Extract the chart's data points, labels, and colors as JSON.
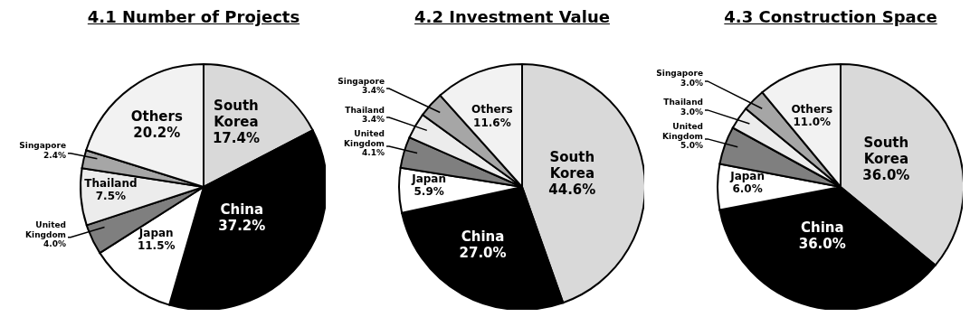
{
  "chart_data": [
    {
      "type": "pie",
      "title": "4.1 Number of Projects",
      "categories": [
        "South Korea",
        "China",
        "Japan",
        "United Kingdom",
        "Thailand",
        "Singapore",
        "Others"
      ],
      "values": [
        17.4,
        37.2,
        11.5,
        4.0,
        7.5,
        2.4,
        20.2
      ],
      "value_labels": [
        "17.4%",
        "37.2%",
        "11.5%",
        "4.0%",
        "7.5%",
        "2.4%",
        "20.2%"
      ],
      "colors": [
        "#d9d9d9",
        "#000000",
        "#ffffff",
        "#7f7f7f",
        "#ececec",
        "#a6a6a6",
        "#f2f2f2"
      ]
    },
    {
      "type": "pie",
      "title": "4.2 Investment Value",
      "categories": [
        "South Korea",
        "China",
        "Japan",
        "United Kingdom",
        "Thailand",
        "Singapore",
        "Others"
      ],
      "values": [
        44.6,
        27.0,
        5.9,
        4.1,
        3.4,
        3.4,
        11.6
      ],
      "value_labels": [
        "44.6%",
        "27.0%",
        "5.9%",
        "4.1%",
        "3.4%",
        "3.4%",
        "11.6%"
      ],
      "colors": [
        "#d9d9d9",
        "#000000",
        "#ffffff",
        "#7f7f7f",
        "#ececec",
        "#a6a6a6",
        "#f2f2f2"
      ]
    },
    {
      "type": "pie",
      "title": "4.3 Construction Space",
      "categories": [
        "South Korea",
        "China",
        "Japan",
        "United Kingdom",
        "Thailand",
        "Singapore",
        "Others"
      ],
      "values": [
        36.0,
        36.0,
        6.0,
        5.0,
        3.0,
        3.0,
        11.0
      ],
      "value_labels": [
        "36.0%",
        "36.0%",
        "6.0%",
        "5.0%",
        "3.0%",
        "3.0%",
        "11.0%"
      ],
      "colors": [
        "#d9d9d9",
        "#000000",
        "#ffffff",
        "#7f7f7f",
        "#ececec",
        "#a6a6a6",
        "#f2f2f2"
      ]
    }
  ]
}
